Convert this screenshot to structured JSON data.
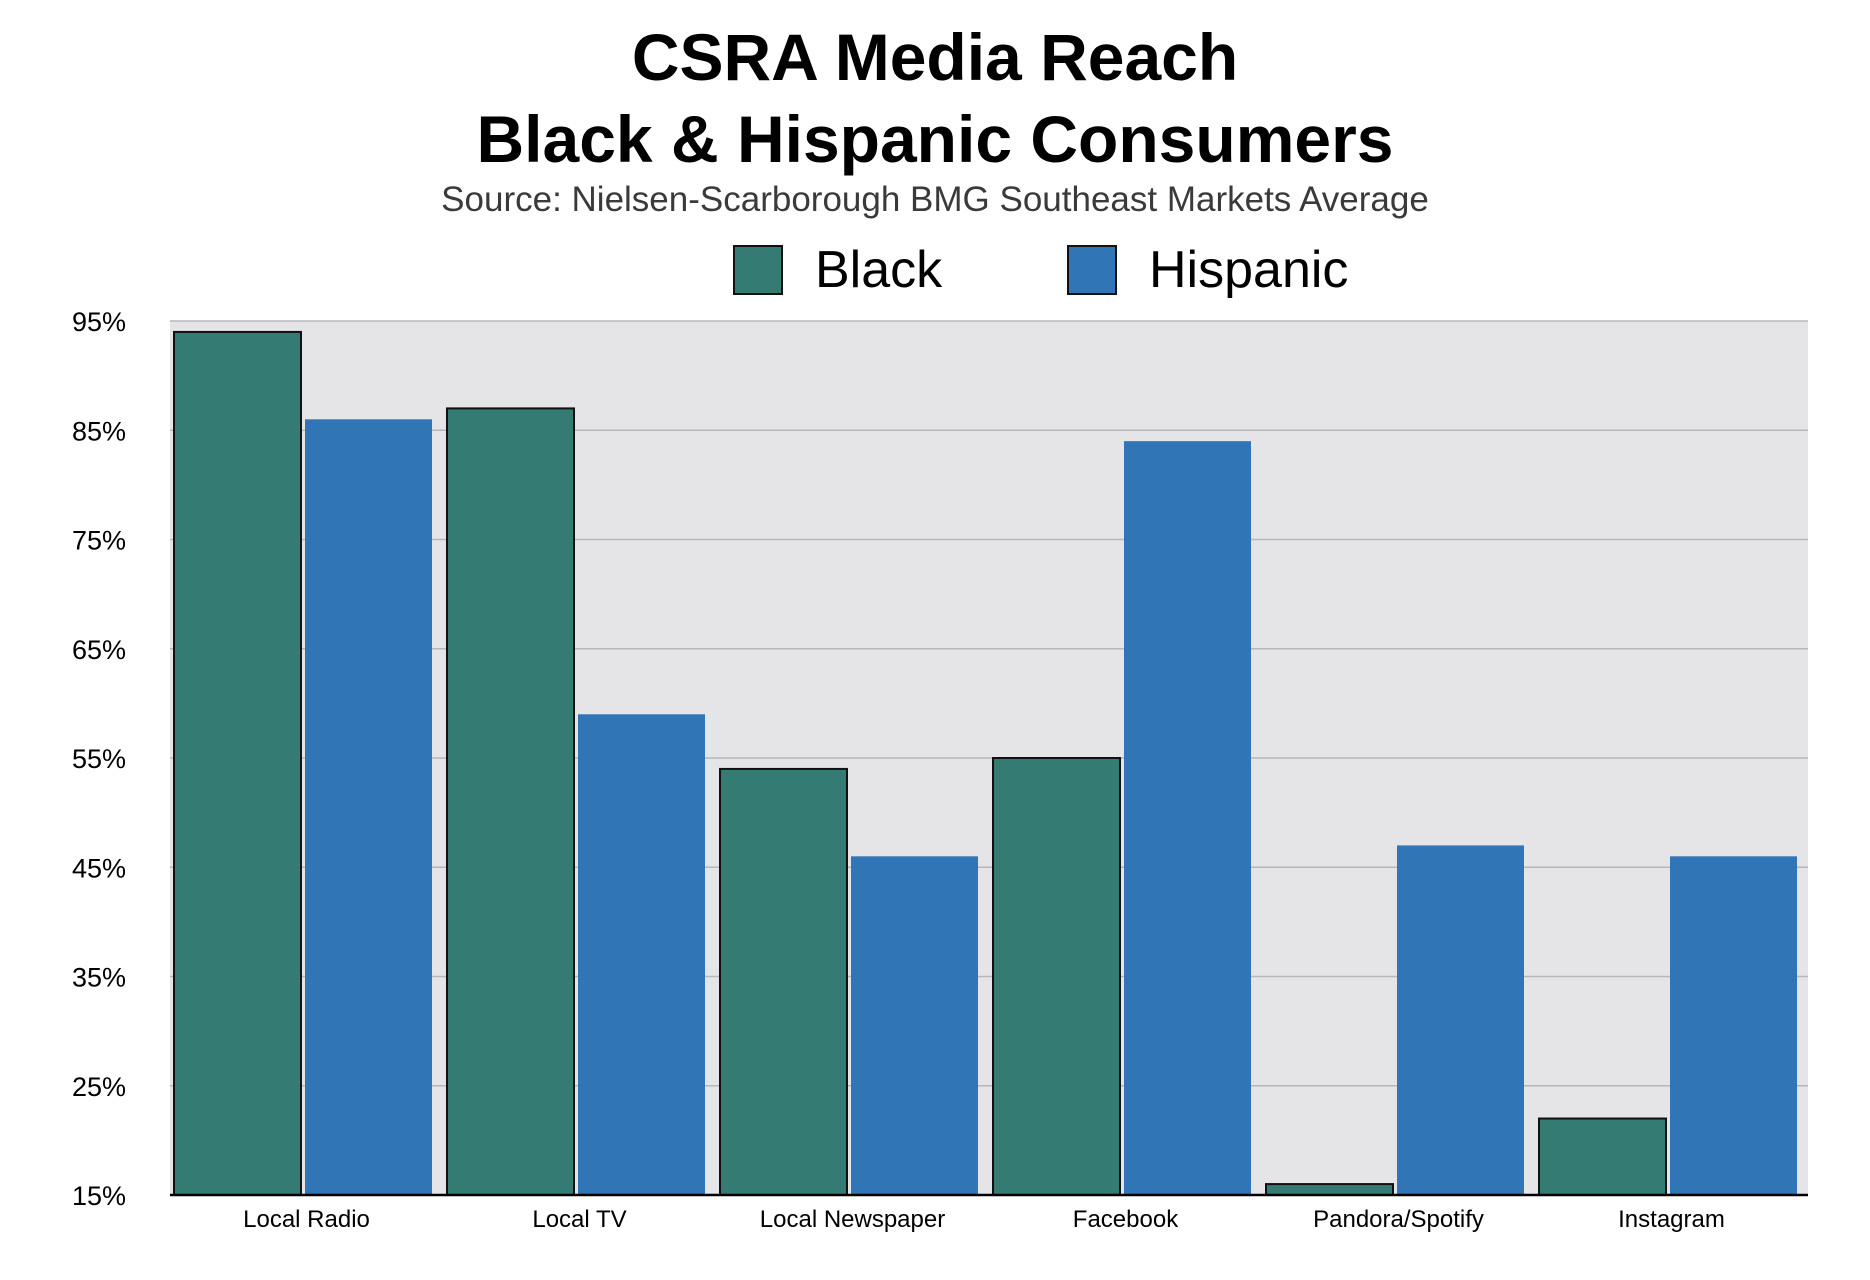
{
  "chart_data": {
    "type": "bar",
    "title": "CSRA Media Reach",
    "title_line2": "Black & Hispanic Consumers",
    "subtitle": "Source: Nielsen-Scarborough BMG Southeast Markets Average",
    "categories": [
      "Local Radio",
      "Local TV",
      "Local Newspaper",
      "Facebook",
      "Pandora/Spotify",
      "Instagram"
    ],
    "series": [
      {
        "name": "Black",
        "color": "#347b74",
        "values": [
          94,
          87,
          54,
          55,
          16,
          22
        ]
      },
      {
        "name": "Hispanic",
        "color": "#3075b6",
        "values": [
          86,
          59,
          46,
          84,
          47,
          46
        ]
      }
    ],
    "yticks": [
      "15%",
      "25%",
      "35%",
      "45%",
      "55%",
      "65%",
      "75%",
      "85%",
      "95%"
    ],
    "ylim": [
      15,
      95
    ],
    "grid": true,
    "legend_position": "top-center",
    "plot_background": "#e5e5e8"
  }
}
